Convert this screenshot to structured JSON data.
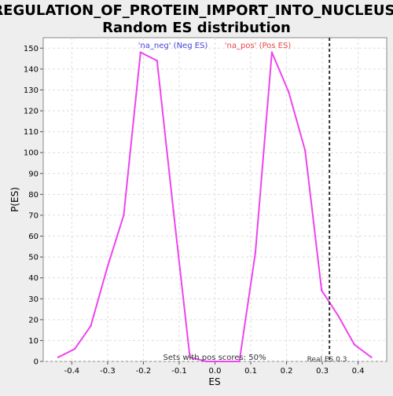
{
  "chart_data": {
    "type": "line",
    "title_line1": "REGULATION_OF_PROTEIN_IMPORT_INTO_NUCLEUS:",
    "title_line2": "Random ES distribution",
    "xlabel": "ES",
    "ylabel": "P(ES)",
    "xlim": [
      -0.48,
      0.48
    ],
    "ylim": [
      0,
      155
    ],
    "x_ticks": [
      -0.4,
      -0.3,
      -0.2,
      -0.1,
      0.0,
      0.1,
      0.2,
      0.3,
      0.4
    ],
    "x_tick_labels": [
      "-0.4",
      "-0.3",
      "-0.2",
      "-0.1",
      "0.0",
      "0.1",
      "0.2",
      "0.3",
      "0.4"
    ],
    "y_ticks": [
      0,
      10,
      20,
      30,
      40,
      50,
      60,
      70,
      80,
      90,
      100,
      110,
      120,
      130,
      140,
      150
    ],
    "grid": true,
    "series": [
      {
        "color": "#ee44ee",
        "x": [
          -0.438,
          -0.392,
          -0.347,
          -0.301,
          -0.255,
          -0.208,
          -0.162,
          -0.116,
          -0.07,
          -0.024,
          0.022,
          0.068,
          0.113,
          0.159,
          0.206,
          0.252,
          0.298,
          0.344,
          0.39,
          0.437
        ],
        "y": [
          2,
          6,
          17,
          45,
          70,
          148,
          144,
          72,
          2,
          0,
          0,
          0,
          52,
          148,
          129,
          101,
          34,
          22,
          8,
          2
        ]
      }
    ],
    "real_es": 0.32,
    "real_es_color": "#333333",
    "legend": {
      "neg_label": "'na_neg' (Neg ES)",
      "neg_color": "#4444dd",
      "pos_label": "'na_pos' (Pos ES)",
      "pos_color": "#ee4444"
    },
    "annotations": {
      "sets_pos": "Sets with pos scores: 50%",
      "real_es_label": "Real ES 0.3"
    }
  }
}
